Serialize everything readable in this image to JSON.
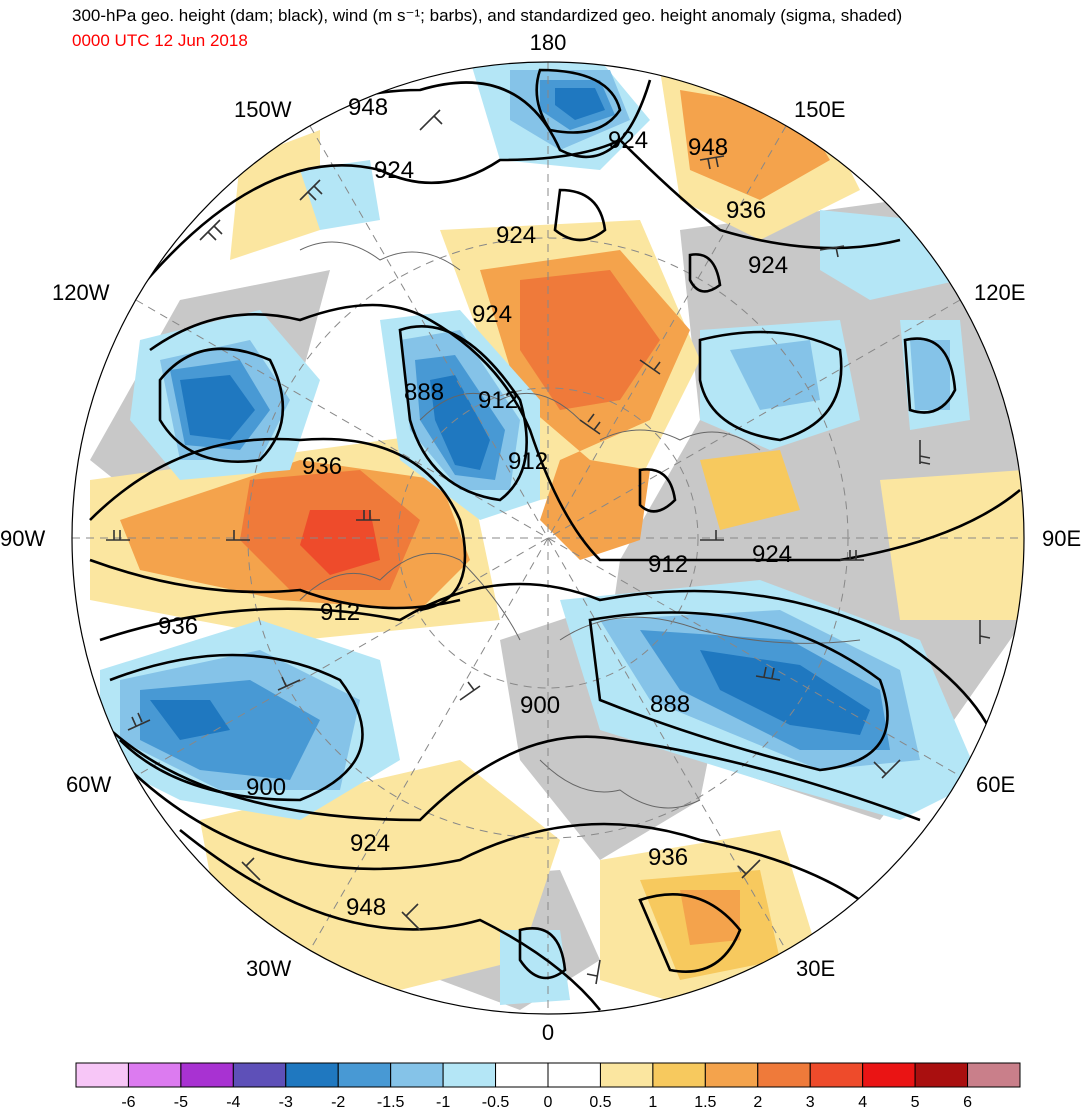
{
  "title": "300-hPa geo. height (dam; black), wind (m s⁻¹; barbs), and standardized geo. height anomaly (sigma, shaded)",
  "valid_time": "0000 UTC 12 Jun 2018",
  "longitude_labels": {
    "top": "180",
    "bottom": "0",
    "left": "90W",
    "right": "90E",
    "w150": "150W",
    "e150": "150E",
    "w120": "120W",
    "e120": "120E",
    "w60": "60W",
    "e60": "60E",
    "w30": "30W",
    "e30": "30E"
  },
  "contour_labels": {
    "c948a": "948",
    "c948b": "948",
    "c948c": "948",
    "c924a": "924",
    "c924b": "924",
    "c924c": "924",
    "c924d": "924",
    "c924e": "924",
    "c924f": "924",
    "c924g": "924",
    "c936a": "936",
    "c936b": "936",
    "c936c": "936",
    "c936d": "936",
    "c888a": "888",
    "c888b": "888",
    "c912a": "912",
    "c912b": "912",
    "c912c": "912",
    "c912d": "912",
    "c900a": "900",
    "c900b": "900"
  },
  "colorbar": {
    "ticks": [
      "-6",
      "-5",
      "-4",
      "-3",
      "-2",
      "-1.5",
      "-1",
      "-0.5",
      "0",
      "0.5",
      "1",
      "1.5",
      "2",
      "3",
      "4",
      "5",
      "6"
    ],
    "colors": [
      "#f7c6f7",
      "#dc7bf0",
      "#a832d2",
      "#5e50b8",
      "#1f78c0",
      "#4899d4",
      "#85c3e8",
      "#b4e6f6",
      "#ffffff",
      "#ffffff",
      "#fbe6a0",
      "#f7c95e",
      "#f4a34c",
      "#ef7a3a",
      "#ee4b2b",
      "#ea1414",
      "#a90f0f",
      "#c97f8a"
    ]
  }
}
